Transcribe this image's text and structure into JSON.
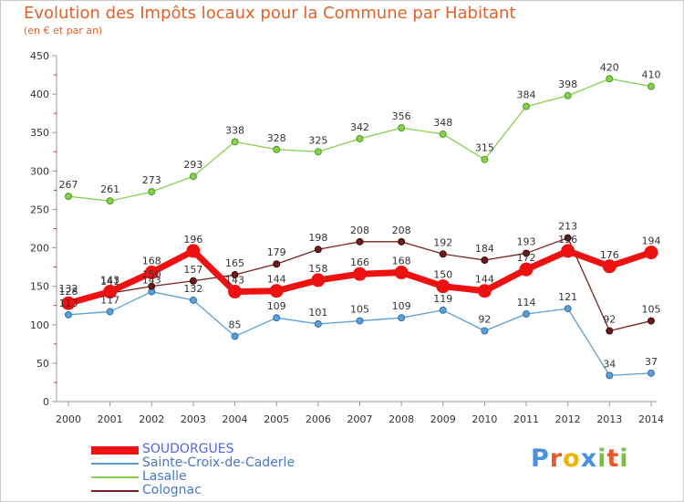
{
  "header": {
    "title": "Evolution des Impôts locaux pour la Commune par Habitant",
    "subtitle": "(en € et par an)"
  },
  "logo": {
    "text": "Proxiti",
    "letter_colors": [
      "#4a90e2",
      "#e8592b",
      "#f0b400",
      "#4a90e2",
      "#7ac143",
      "#e8592b",
      "#7ac143"
    ]
  },
  "chart_data": {
    "type": "line",
    "title": "Evolution des Impôts locaux pour la Commune par Habitant",
    "subtitle": "(en € et par an)",
    "xlabel": "",
    "ylabel": "",
    "x": [
      "2000",
      "2001",
      "2002",
      "2003",
      "2004",
      "2005",
      "2006",
      "2007",
      "2008",
      "2009",
      "2010",
      "2011",
      "2012",
      "2013",
      "2014"
    ],
    "ylim": [
      0,
      450
    ],
    "yticks": [
      0,
      50,
      100,
      150,
      200,
      250,
      300,
      350,
      400,
      450
    ],
    "grid": false,
    "legend": "bottom-left",
    "series": [
      {
        "name": "SOUDORGUES",
        "color": "#ee1111",
        "values": [
          128,
          143,
          168,
          196,
          143,
          144,
          158,
          166,
          168,
          150,
          144,
          172,
          196,
          176,
          194
        ]
      },
      {
        "name": "Sainte-Croix-de-Caderle",
        "color": "#5b9fd6",
        "values": [
          113,
          117,
          143,
          132,
          85,
          109,
          101,
          105,
          109,
          119,
          92,
          114,
          121,
          34,
          37
        ]
      },
      {
        "name": "Lasalle",
        "color": "#86cf4f",
        "values": [
          267,
          261,
          273,
          293,
          338,
          328,
          325,
          342,
          356,
          348,
          315,
          384,
          398,
          420,
          410
        ]
      },
      {
        "name": "Colognac",
        "color": "#7a2222",
        "values": [
          132,
          141,
          150,
          157,
          165,
          179,
          198,
          208,
          208,
          192,
          184,
          193,
          213,
          92,
          105
        ]
      }
    ]
  }
}
